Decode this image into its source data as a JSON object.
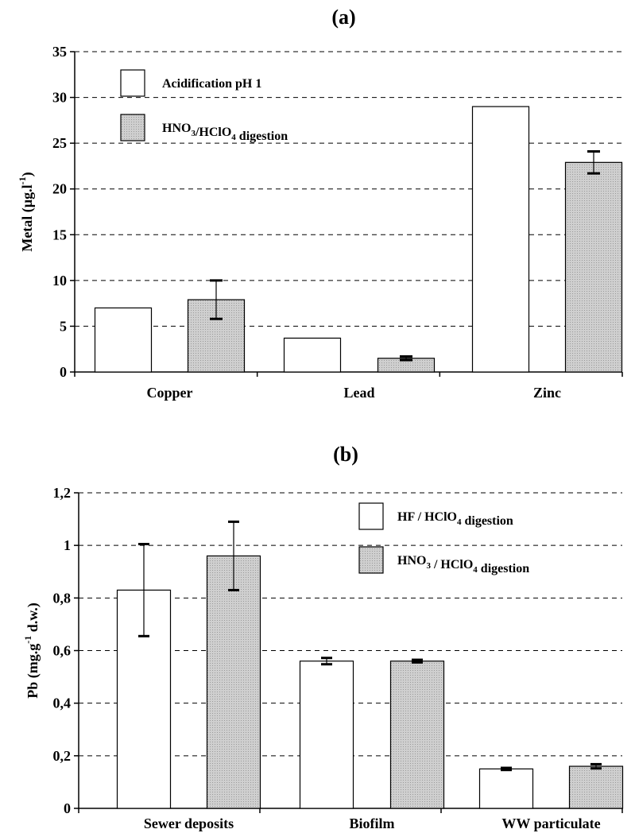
{
  "chart_data": [
    {
      "type": "bar",
      "panel_label": "(a)",
      "title": "",
      "ylabel": {
        "main": "Metal (µg.l",
        "sup": "-1",
        "tail": ")"
      },
      "xlabel": "",
      "ylim": [
        0,
        35
      ],
      "yticks": [
        "0",
        "5",
        "10",
        "15",
        "20",
        "25",
        "30",
        "35"
      ],
      "ytick_values": [
        0,
        5,
        10,
        15,
        20,
        25,
        30,
        35
      ],
      "grid": "horizontal dashed",
      "legend_position": "top-left",
      "categories": [
        "Copper",
        "Lead",
        "Zinc"
      ],
      "series": [
        {
          "legend": {
            "parts": [
              {
                "t": "Acidification pH 1",
                "s": ""
              }
            ]
          },
          "fill": "#ffffff",
          "values": [
            7.0,
            3.7,
            29.0
          ],
          "errors": [
            null,
            null,
            null
          ]
        },
        {
          "legend": {
            "parts": [
              {
                "t": "HNO",
                "s": "3"
              },
              {
                "t": "/HClO",
                "s": "4"
              },
              {
                "t": " digestion",
                "s": ""
              }
            ]
          },
          "fill": "#c8c8c8",
          "values": [
            7.9,
            1.5,
            22.9
          ],
          "errors": [
            2.1,
            0.2,
            1.2
          ]
        }
      ]
    },
    {
      "type": "bar",
      "panel_label": "(b)",
      "title": "",
      "ylabel": {
        "main": "Pb (mg.g",
        "sup": "-1",
        "tail": " d.w.)"
      },
      "xlabel": "",
      "ylim": [
        0,
        1.2
      ],
      "yticks": [
        "0",
        "0,2",
        "0,4",
        "0,6",
        "0,8",
        "1",
        "1,2"
      ],
      "ytick_values": [
        0,
        0.2,
        0.4,
        0.6,
        0.8,
        1.0,
        1.2
      ],
      "grid": "horizontal dashed",
      "legend_position": "top-right",
      "categories": [
        "Sewer deposits",
        "Biofilm",
        "WW particulate"
      ],
      "series": [
        {
          "legend": {
            "parts": [
              {
                "t": "HF / HClO",
                "s": "4"
              },
              {
                "t": " digestion",
                "s": ""
              }
            ]
          },
          "fill": "#ffffff",
          "values": [
            0.83,
            0.56,
            0.15
          ],
          "errors": [
            0.175,
            0.012,
            0.004
          ]
        },
        {
          "legend": {
            "parts": [
              {
                "t": "HNO",
                "s": "3"
              },
              {
                "t": " / HClO",
                "s": "4"
              },
              {
                "t": " digestion",
                "s": ""
              }
            ]
          },
          "fill": "#c8c8c8",
          "values": [
            0.96,
            0.56,
            0.16
          ],
          "errors": [
            0.13,
            0.005,
            0.008
          ]
        }
      ]
    }
  ]
}
